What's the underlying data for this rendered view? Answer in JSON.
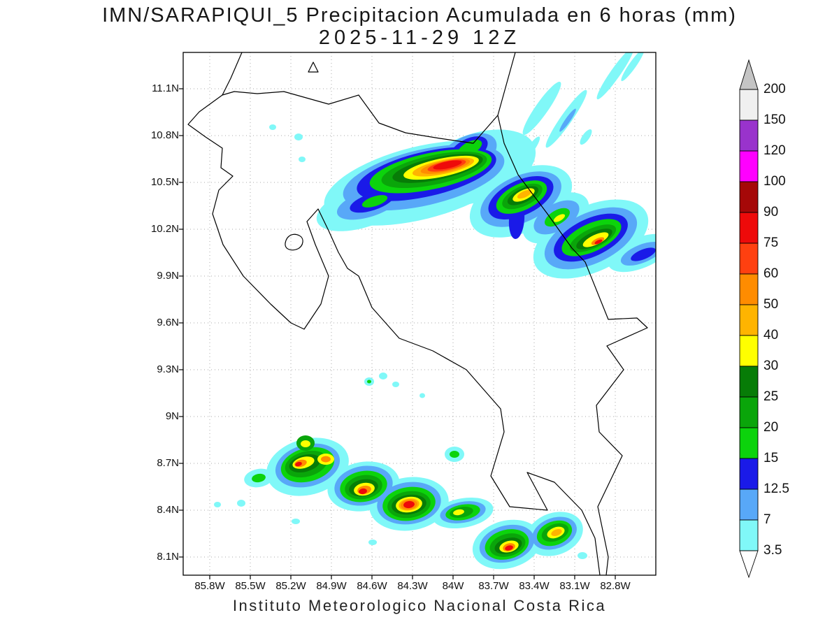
{
  "title": {
    "line1": "IMN/SARAPIQUI_5 Precipitacion Acumulada en 6 horas (mm)",
    "line2": "2025-11-29 12Z"
  },
  "footer": "Instituto Meteorologico Nacional Costa Rica",
  "chart_data": {
    "type": "heatmap",
    "title": "IMN/SARAPIQUI_5 Precipitacion Acumulada en 6 horas (mm)",
    "subtitle": "2025-11-29 12Z",
    "units": "mm",
    "legend_position": "right",
    "grid": "dotted",
    "x_ticks": [
      "85.8W",
      "85.5W",
      "85.2W",
      "84.9W",
      "84.6W",
      "84.3W",
      "84W",
      "83.7W",
      "83.4W",
      "83.1W",
      "82.8W"
    ],
    "y_ticks": [
      "11.1N",
      "10.8N",
      "10.5N",
      "10.2N",
      "9.9N",
      "9.6N",
      "9.3N",
      "9N",
      "8.7N",
      "8.4N",
      "8.1N"
    ],
    "levels": [
      3.5,
      7,
      12.5,
      15,
      20,
      25,
      30,
      40,
      50,
      60,
      75,
      90,
      100,
      120,
      150,
      200
    ],
    "palette": {
      "3.5": "#80f8f8",
      "7": "#58a8f8",
      "12.5": "#1a1ae8",
      "15": "#0cd30c",
      "20": "#0aa50a",
      "25": "#077c07",
      "30": "#ffff00",
      "40": "#ffb400",
      "50": "#ff8c00",
      "60": "#ff4010",
      "75": "#ee0a0a",
      "90": "#a50808",
      "100": "#ff00ff",
      "120": "#9933cc",
      "150": "#f0f0f0",
      "200": "#c4c4c4"
    },
    "colorbar": {
      "labels_top_to_bottom": [
        "200",
        "150",
        "120",
        "100",
        "90",
        "75",
        "60",
        "50",
        "40",
        "30",
        "25",
        "20",
        "15",
        "12.5",
        "7",
        "3.5"
      ],
      "segment_colors_top_to_bottom": [
        "#f0f0f0",
        "#9933cc",
        "#ff00ff",
        "#a50808",
        "#ee0a0a",
        "#ff4010",
        "#ff8c00",
        "#ffb400",
        "#ffff00",
        "#077c07",
        "#0aa50a",
        "#0cd30c",
        "#1a1ae8",
        "#58a8f8",
        "#80f8f8"
      ],
      "arrow_top_color": "#c4c4c4",
      "arrow_bottom_color": "#ffffff"
    },
    "coastline_paths": [
      "M346,75 L330,112 L318,136 L285,160 L269,178 L294,196 L318,212 L316,240 L333,252 L313,272 L304,306 L319,350 L348,395 L387,435 L416,462 L435,471 L459,435 L470,395 L451,350 L439,317 L455,299 L470,330 L484,361 L497,384 L513,395 L532,440 L571,484 L619,502 L667,529 L716,585 L721,618 L702,681 L729,725 L783,730 L754,676 L793,690 L832,730 L851,770 L858,823",
      "M867,823 L870,797 L855,725 L890,652 L857,618 L853,580 L892,529 L868,495 L926,469 L911,455 L870,457 L837,375 L818,355 L783,306 L741,250 L721,205 L712,165 L737,75",
      "M712,165 L677,205 L629,198 L580,190 L542,176 L513,136 L470,149 L406,131 L368,134 L335,131 L318,136",
      "M408,348 C410,336 420,333 428,337 C436,341 434,352 426,356 C417,360 407,357 408,348 Z",
      "M448,89 L441,103 L455,103 Z"
    ],
    "blob_format": [
      "level_mm",
      "cx",
      "cy",
      "rx",
      "ry",
      "rotate_deg"
    ],
    "blobs": [
      [
        "3.5",
        600,
        262,
        140,
        52,
        -14
      ],
      [
        "3.5",
        520,
        295,
        70,
        30,
        -18
      ],
      [
        "3.5",
        680,
        240,
        90,
        48,
        -20
      ],
      [
        "7",
        606,
        254,
        118,
        40,
        -13
      ],
      [
        "7",
        528,
        291,
        48,
        19,
        -18
      ],
      [
        "7",
        668,
        222,
        46,
        26,
        -28
      ],
      [
        "12.5",
        610,
        249,
        102,
        32,
        -13
      ],
      [
        "12.5",
        532,
        289,
        33,
        12,
        -18
      ],
      [
        "12.5",
        670,
        215,
        30,
        16,
        -28
      ],
      [
        "15",
        616,
        245,
        89,
        26,
        -12
      ],
      [
        "15",
        536,
        288,
        19,
        7,
        -18
      ],
      [
        "15",
        672,
        212,
        19,
        9,
        -28
      ],
      [
        "20",
        621,
        243,
        77,
        21,
        -12
      ],
      [
        "25",
        626,
        241,
        66,
        16,
        -12
      ],
      [
        "30",
        631,
        240,
        55,
        13,
        -12
      ],
      [
        "40",
        634,
        239,
        45,
        10,
        -12
      ],
      [
        "50",
        637,
        238,
        36,
        8,
        -12
      ],
      [
        "60",
        639,
        237,
        28,
        6.5,
        -12
      ],
      [
        "75",
        640,
        236,
        21,
        5,
        -12
      ],
      [
        "3.5",
        745,
        288,
        78,
        44,
        -25
      ],
      [
        "7",
        745,
        285,
        62,
        33,
        -25
      ],
      [
        "12.5",
        745,
        283,
        50,
        25,
        -25
      ],
      [
        "12.5",
        739,
        314,
        11,
        28,
        4
      ],
      [
        "15",
        746,
        282,
        39,
        19,
        -25
      ],
      [
        "20",
        747,
        281,
        31,
        14,
        -25
      ],
      [
        "25",
        748,
        280,
        24,
        10,
        -25
      ],
      [
        "30",
        749,
        279,
        17,
        7,
        -25
      ],
      [
        "40",
        750,
        278,
        11,
        4.5,
        -25
      ],
      [
        "3.5",
        795,
        312,
        52,
        30,
        -30
      ],
      [
        "7",
        796,
        311,
        36,
        19,
        -30
      ],
      [
        "15",
        797,
        311,
        20,
        10,
        -30
      ],
      [
        "30",
        800,
        312,
        9,
        4,
        -30
      ],
      [
        "3.5",
        845,
        342,
        88,
        47,
        -25
      ],
      [
        "7",
        845,
        341,
        71,
        36,
        -25
      ],
      [
        "12.5",
        845,
        340,
        57,
        27,
        -25
      ],
      [
        "15",
        846,
        340,
        46,
        20,
        -25
      ],
      [
        "20",
        848,
        341,
        36,
        14,
        -25
      ],
      [
        "25",
        850,
        342,
        28,
        10,
        -25
      ],
      [
        "30",
        852,
        343,
        20,
        7,
        -25
      ],
      [
        "50",
        855,
        345,
        10,
        4,
        -25
      ],
      [
        "75",
        856,
        346,
        6,
        2.5,
        -25
      ],
      [
        "3.5",
        915,
        362,
        48,
        22,
        -22
      ],
      [
        "7",
        918,
        363,
        32,
        13,
        -22
      ],
      [
        "12.5",
        920,
        364,
        19,
        7,
        -22
      ],
      [
        "3.5",
        775,
        155,
        9,
        46,
        35
      ],
      [
        "3.5",
        810,
        170,
        8,
        50,
        35
      ],
      [
        "3.5",
        880,
        105,
        7,
        45,
        35
      ],
      [
        "3.5",
        905,
        93,
        5,
        28,
        35
      ],
      [
        "3.5",
        760,
        212,
        5,
        20,
        35
      ],
      [
        "3.5",
        838,
        196,
        5,
        13,
        35
      ],
      [
        "7",
        812,
        172,
        3.5,
        20,
        35
      ],
      [
        "3.5",
        390,
        182,
        5,
        4,
        0
      ],
      [
        "3.5",
        427,
        196,
        6,
        5,
        0
      ],
      [
        "3.5",
        432,
        228,
        5,
        4,
        0
      ],
      [
        "3.5",
        528,
        546,
        7,
        6,
        0
      ],
      [
        "15",
        528,
        546,
        3,
        2.5,
        0
      ],
      [
        "3.5",
        548,
        538,
        6,
        5,
        0
      ],
      [
        "3.5",
        566,
        550,
        5,
        4,
        0
      ],
      [
        "3.5",
        604,
        566,
        4,
        3.5,
        0
      ],
      [
        "3.5",
        650,
        650,
        14,
        11,
        0
      ],
      [
        "15",
        650,
        650,
        7,
        5,
        0
      ],
      [
        "3.5",
        311,
        722,
        5,
        4,
        0
      ],
      [
        "3.5",
        345,
        720,
        6,
        5,
        0
      ],
      [
        "3.5",
        370,
        684,
        21,
        13,
        -10
      ],
      [
        "15",
        370,
        684,
        10,
        6,
        -10
      ],
      [
        "3.5",
        440,
        668,
        60,
        40,
        -15
      ],
      [
        "7",
        440,
        666,
        47,
        30,
        -15
      ],
      [
        "15",
        440,
        665,
        39,
        24,
        -15
      ],
      [
        "20",
        438,
        664,
        31,
        18,
        -15
      ],
      [
        "25",
        436,
        663,
        23,
        12,
        -15
      ],
      [
        "30",
        434,
        662,
        16,
        8,
        -15
      ],
      [
        "50",
        430,
        663,
        9,
        5,
        -15
      ],
      [
        "75",
        427,
        664,
        5,
        3,
        -15
      ],
      [
        "20",
        437,
        634,
        13,
        11,
        0
      ],
      [
        "30",
        437,
        635,
        7,
        5,
        0
      ],
      [
        "30",
        466,
        657,
        12,
        8,
        0
      ],
      [
        "50",
        466,
        657,
        7,
        4.5,
        0
      ],
      [
        "3.5",
        520,
        696,
        52,
        35,
        -10
      ],
      [
        "7",
        520,
        695,
        42,
        28,
        -10
      ],
      [
        "15",
        520,
        696,
        34,
        22,
        -10
      ],
      [
        "20",
        520,
        697,
        27,
        17,
        -10
      ],
      [
        "25",
        520,
        698,
        21,
        12,
        -10
      ],
      [
        "30",
        521,
        700,
        15,
        9,
        -10
      ],
      [
        "50",
        521,
        701,
        10,
        6,
        -10
      ],
      [
        "75",
        519,
        703,
        6,
        4,
        -10
      ],
      [
        "3.5",
        585,
        721,
        57,
        38,
        -8
      ],
      [
        "7",
        585,
        720,
        46,
        30,
        -8
      ],
      [
        "15",
        585,
        721,
        38,
        24,
        -8
      ],
      [
        "20",
        585,
        722,
        31,
        19,
        -8
      ],
      [
        "25",
        585,
        722,
        25,
        14,
        -8
      ],
      [
        "30",
        585,
        722,
        19,
        11,
        -8
      ],
      [
        "40",
        585,
        722,
        15,
        8.5,
        -8
      ],
      [
        "50",
        585,
        722,
        12,
        7,
        -8
      ],
      [
        "75",
        585,
        722,
        8,
        5,
        -8
      ],
      [
        "3.5",
        662,
        734,
        44,
        21,
        -10
      ],
      [
        "7",
        662,
        733,
        33,
        15,
        -10
      ],
      [
        "15",
        662,
        733,
        25,
        11,
        -10
      ],
      [
        "20",
        660,
        733,
        17,
        7.5,
        -10
      ],
      [
        "30",
        656,
        733,
        8,
        4,
        -10
      ],
      [
        "3.5",
        725,
        779,
        50,
        34,
        -15
      ],
      [
        "7",
        725,
        778,
        40,
        26,
        -15
      ],
      [
        "15",
        725,
        779,
        32,
        21,
        -15
      ],
      [
        "20",
        726,
        780,
        26,
        16,
        -15
      ],
      [
        "25",
        727,
        781,
        20,
        11,
        -15
      ],
      [
        "30",
        728,
        782,
        14,
        8,
        -15
      ],
      [
        "50",
        728,
        783,
        9,
        5.5,
        -15
      ],
      [
        "75",
        728,
        784,
        6,
        3.5,
        -15
      ],
      [
        "3.5",
        793,
        764,
        42,
        30,
        -20
      ],
      [
        "7",
        793,
        763,
        33,
        22,
        -20
      ],
      [
        "15",
        793,
        763,
        26,
        17,
        -20
      ],
      [
        "20",
        794,
        762,
        20,
        12,
        -20
      ],
      [
        "30",
        795,
        762,
        13,
        7.5,
        -20
      ],
      [
        "40",
        796,
        762,
        8,
        4.5,
        -20
      ],
      [
        "3.5",
        423,
        746,
        6,
        4,
        0
      ],
      [
        "3.5",
        533,
        776,
        6,
        4,
        0
      ],
      [
        "3.5",
        833,
        795,
        7,
        5,
        0
      ]
    ]
  }
}
